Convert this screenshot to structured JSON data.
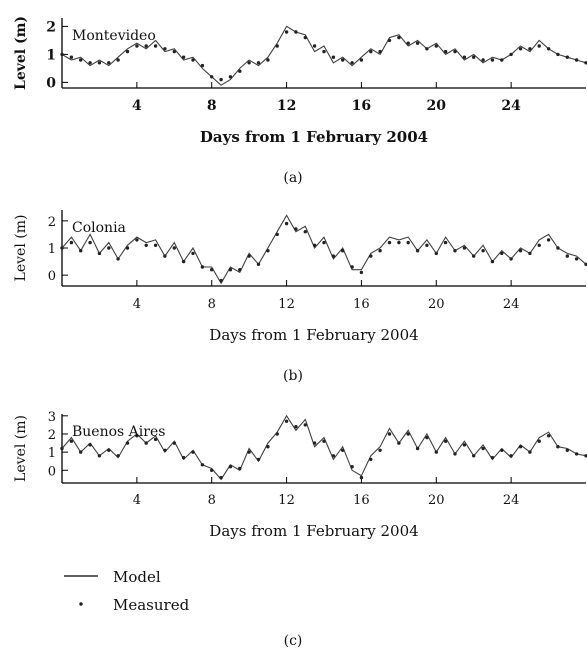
{
  "chart_data": [
    {
      "type": "line",
      "station": "Montevideo",
      "caption": "(a)",
      "xlabel": "Days from 1 February 2004",
      "ylabel": "Level (m)",
      "xlim": [
        0,
        28
      ],
      "ylim": [
        -0.2,
        2.3
      ],
      "xticks": [
        4,
        8,
        12,
        16,
        20,
        24
      ],
      "yticks": [
        0,
        1,
        2
      ],
      "series": [
        {
          "name": "Model",
          "x": [
            0,
            0.5,
            1,
            1.5,
            2,
            2.5,
            3,
            3.5,
            4,
            4.5,
            5,
            5.5,
            6,
            6.5,
            7,
            7.5,
            8,
            8.5,
            9,
            9.5,
            10,
            10.5,
            11,
            11.5,
            12,
            12.5,
            13,
            13.5,
            14,
            14.5,
            15,
            15.5,
            16,
            16.5,
            17,
            17.5,
            18,
            18.5,
            19,
            19.5,
            20,
            20.5,
            21,
            21.5,
            22,
            22.5,
            23,
            23.5,
            24,
            24.5,
            25,
            25.5,
            26,
            26.5,
            27,
            27.5,
            28
          ],
          "values": [
            1.0,
            0.8,
            0.9,
            0.6,
            0.8,
            0.6,
            0.9,
            1.2,
            1.4,
            1.2,
            1.5,
            1.1,
            1.2,
            0.8,
            0.9,
            0.5,
            0.2,
            -0.1,
            0.1,
            0.5,
            0.8,
            0.6,
            0.9,
            1.4,
            2.0,
            1.8,
            1.7,
            1.1,
            1.3,
            0.7,
            0.9,
            0.6,
            0.9,
            1.2,
            1.0,
            1.6,
            1.7,
            1.3,
            1.5,
            1.2,
            1.4,
            1.0,
            1.2,
            0.8,
            1.0,
            0.7,
            0.9,
            0.8,
            1.0,
            1.3,
            1.1,
            1.5,
            1.2,
            1.0,
            0.9,
            0.8,
            0.7
          ]
        },
        {
          "name": "Measured",
          "x": [
            0,
            0.5,
            1,
            1.5,
            2,
            2.5,
            3,
            3.5,
            4,
            4.5,
            5,
            5.5,
            6,
            6.5,
            7,
            7.5,
            8,
            8.5,
            9,
            9.5,
            10,
            10.5,
            11,
            11.5,
            12,
            12.5,
            13,
            13.5,
            14,
            14.5,
            15,
            15.5,
            16,
            16.5,
            17,
            17.5,
            18,
            18.5,
            19,
            19.5,
            20,
            20.5,
            21,
            21.5,
            22,
            22.5,
            23,
            23.5,
            24,
            24.5,
            25,
            25.5,
            26,
            26.5,
            27,
            27.5,
            28
          ],
          "values": [
            1.0,
            0.9,
            0.8,
            0.7,
            0.7,
            0.7,
            0.8,
            1.1,
            1.3,
            1.3,
            1.3,
            1.2,
            1.1,
            0.9,
            0.8,
            0.6,
            0.2,
            0.1,
            0.2,
            0.4,
            0.7,
            0.7,
            0.8,
            1.3,
            1.8,
            1.8,
            1.6,
            1.3,
            1.1,
            0.9,
            0.8,
            0.7,
            0.8,
            1.1,
            1.1,
            1.5,
            1.6,
            1.4,
            1.4,
            1.2,
            1.3,
            1.1,
            1.1,
            0.9,
            0.9,
            0.8,
            0.8,
            0.8,
            1.0,
            1.2,
            1.2,
            1.3,
            1.2,
            1.0,
            0.9,
            0.8,
            0.7
          ]
        }
      ]
    },
    {
      "type": "line",
      "station": "Colonia",
      "caption": "(b)",
      "xlabel": "Days from 1 February 2004",
      "ylabel": "Level (m)",
      "xlim": [
        0,
        28
      ],
      "ylim": [
        -0.4,
        2.4
      ],
      "xticks": [
        4,
        8,
        12,
        16,
        20,
        24
      ],
      "yticks": [
        0,
        1,
        2
      ],
      "series": [
        {
          "name": "Model",
          "x": [
            0,
            0.5,
            1,
            1.5,
            2,
            2.5,
            3,
            3.5,
            4,
            4.5,
            5,
            5.5,
            6,
            6.5,
            7,
            7.5,
            8,
            8.5,
            9,
            9.5,
            10,
            10.5,
            11,
            11.5,
            12,
            12.5,
            13,
            13.5,
            14,
            14.5,
            15,
            15.5,
            16,
            16.5,
            17,
            17.5,
            18,
            18.5,
            19,
            19.5,
            20,
            20.5,
            21,
            21.5,
            22,
            22.5,
            23,
            23.5,
            24,
            24.5,
            25,
            25.5,
            26,
            26.5,
            27,
            27.5,
            28
          ],
          "values": [
            1.0,
            1.4,
            0.9,
            1.5,
            0.8,
            1.2,
            0.6,
            1.1,
            1.4,
            1.2,
            1.3,
            0.7,
            1.2,
            0.5,
            1.0,
            0.3,
            0.3,
            -0.3,
            0.3,
            0.1,
            0.8,
            0.4,
            1.0,
            1.6,
            2.2,
            1.6,
            1.8,
            1.0,
            1.4,
            0.6,
            1.0,
            0.2,
            0.2,
            0.8,
            1.0,
            1.4,
            1.3,
            1.4,
            0.9,
            1.3,
            0.8,
            1.4,
            0.9,
            1.1,
            0.7,
            1.1,
            0.5,
            0.9,
            0.6,
            1.0,
            0.8,
            1.3,
            1.5,
            1.0,
            0.8,
            0.7,
            0.4
          ]
        },
        {
          "name": "Measured",
          "x": [
            0,
            0.5,
            1,
            1.5,
            2,
            2.5,
            3,
            3.5,
            4,
            4.5,
            5,
            5.5,
            6,
            6.5,
            7,
            7.5,
            8,
            8.5,
            9,
            9.5,
            10,
            10.5,
            11,
            11.5,
            12,
            12.5,
            13,
            13.5,
            14,
            14.5,
            15,
            15.5,
            16,
            16.5,
            17,
            17.5,
            18,
            18.5,
            19,
            19.5,
            20,
            20.5,
            21,
            21.5,
            22,
            22.5,
            23,
            23.5,
            24,
            24.5,
            25,
            25.5,
            26,
            26.5,
            27,
            27.5,
            28
          ],
          "values": [
            1.0,
            1.2,
            0.9,
            1.2,
            0.8,
            1.0,
            0.6,
            1.0,
            1.3,
            1.1,
            1.1,
            0.7,
            1.0,
            0.5,
            0.8,
            0.3,
            0.2,
            -0.2,
            0.2,
            0.2,
            0.7,
            0.4,
            0.9,
            1.5,
            1.9,
            1.7,
            1.6,
            1.1,
            1.2,
            0.7,
            0.9,
            0.3,
            0.1,
            0.7,
            0.9,
            1.2,
            1.2,
            1.2,
            0.9,
            1.1,
            0.8,
            1.2,
            0.9,
            1.0,
            0.7,
            0.9,
            0.5,
            0.8,
            0.6,
            0.9,
            0.8,
            1.1,
            1.3,
            1.0,
            0.7,
            0.6,
            0.4
          ]
        }
      ]
    },
    {
      "type": "line",
      "station": "Buenos Aires",
      "caption": "(c)",
      "xlabel": "Days from 1 February 2004",
      "ylabel": "Level (m)",
      "xlim": [
        0,
        28
      ],
      "ylim": [
        -0.7,
        3.1
      ],
      "xticks": [
        4,
        8,
        12,
        16,
        20,
        24
      ],
      "yticks": [
        0,
        1,
        2,
        3
      ],
      "series": [
        {
          "name": "Model",
          "x": [
            0,
            0.5,
            1,
            1.5,
            2,
            2.5,
            3,
            3.5,
            4,
            4.5,
            5,
            5.5,
            6,
            6.5,
            7,
            7.5,
            8,
            8.5,
            9,
            9.5,
            10,
            10.5,
            11,
            11.5,
            12,
            12.5,
            13,
            13.5,
            14,
            14.5,
            15,
            15.5,
            16,
            16.5,
            17,
            17.5,
            18,
            18.5,
            19,
            19.5,
            20,
            20.5,
            21,
            21.5,
            22,
            22.5,
            23,
            23.5,
            24,
            24.5,
            25,
            25.5,
            26,
            26.5,
            27,
            27.5,
            28
          ],
          "values": [
            1.2,
            1.8,
            1.0,
            1.5,
            0.8,
            1.2,
            0.7,
            1.6,
            2.0,
            1.5,
            1.9,
            1.0,
            1.6,
            0.6,
            1.1,
            0.3,
            0.1,
            -0.5,
            0.3,
            0.0,
            1.2,
            0.5,
            1.5,
            2.1,
            3.0,
            2.2,
            2.8,
            1.3,
            1.8,
            0.6,
            1.3,
            0.0,
            -0.3,
            0.8,
            1.3,
            2.3,
            1.5,
            2.2,
            1.2,
            2.0,
            1.0,
            1.8,
            0.9,
            1.6,
            0.8,
            1.4,
            0.6,
            1.2,
            0.7,
            1.4,
            1.0,
            1.8,
            2.1,
            1.3,
            1.2,
            0.9,
            0.8
          ]
        },
        {
          "name": "Measured",
          "x": [
            0,
            0.5,
            1,
            1.5,
            2,
            2.5,
            3,
            3.5,
            4,
            4.5,
            5,
            5.5,
            6,
            6.5,
            7,
            7.5,
            8,
            8.5,
            9,
            9.5,
            10,
            10.5,
            11,
            11.5,
            12,
            12.5,
            13,
            13.5,
            14,
            14.5,
            15,
            15.5,
            16,
            16.5,
            17,
            17.5,
            18,
            18.5,
            19,
            19.5,
            20,
            20.5,
            21,
            21.5,
            22,
            22.5,
            23,
            23.5,
            24,
            24.5,
            25,
            25.5,
            26,
            26.5,
            27,
            27.5,
            28
          ],
          "values": [
            1.2,
            1.6,
            1.0,
            1.4,
            0.8,
            1.1,
            0.8,
            1.5,
            1.9,
            1.5,
            1.7,
            1.1,
            1.5,
            0.7,
            1.0,
            0.3,
            0.0,
            -0.4,
            0.2,
            0.1,
            1.0,
            0.6,
            1.3,
            2.0,
            2.7,
            2.4,
            2.5,
            1.5,
            1.6,
            0.8,
            1.1,
            0.2,
            -0.4,
            0.6,
            1.1,
            2.0,
            1.5,
            2.0,
            1.2,
            1.8,
            1.0,
            1.6,
            0.9,
            1.4,
            0.8,
            1.2,
            0.7,
            1.1,
            0.8,
            1.3,
            1.0,
            1.6,
            1.9,
            1.3,
            1.1,
            0.9,
            0.8
          ]
        }
      ]
    }
  ],
  "legend": {
    "model_label": "Model",
    "measured_label": "Measured",
    "caption": "(c)"
  },
  "colors": {
    "model": "#000000",
    "measured": "#222222",
    "axis": "#000000"
  }
}
